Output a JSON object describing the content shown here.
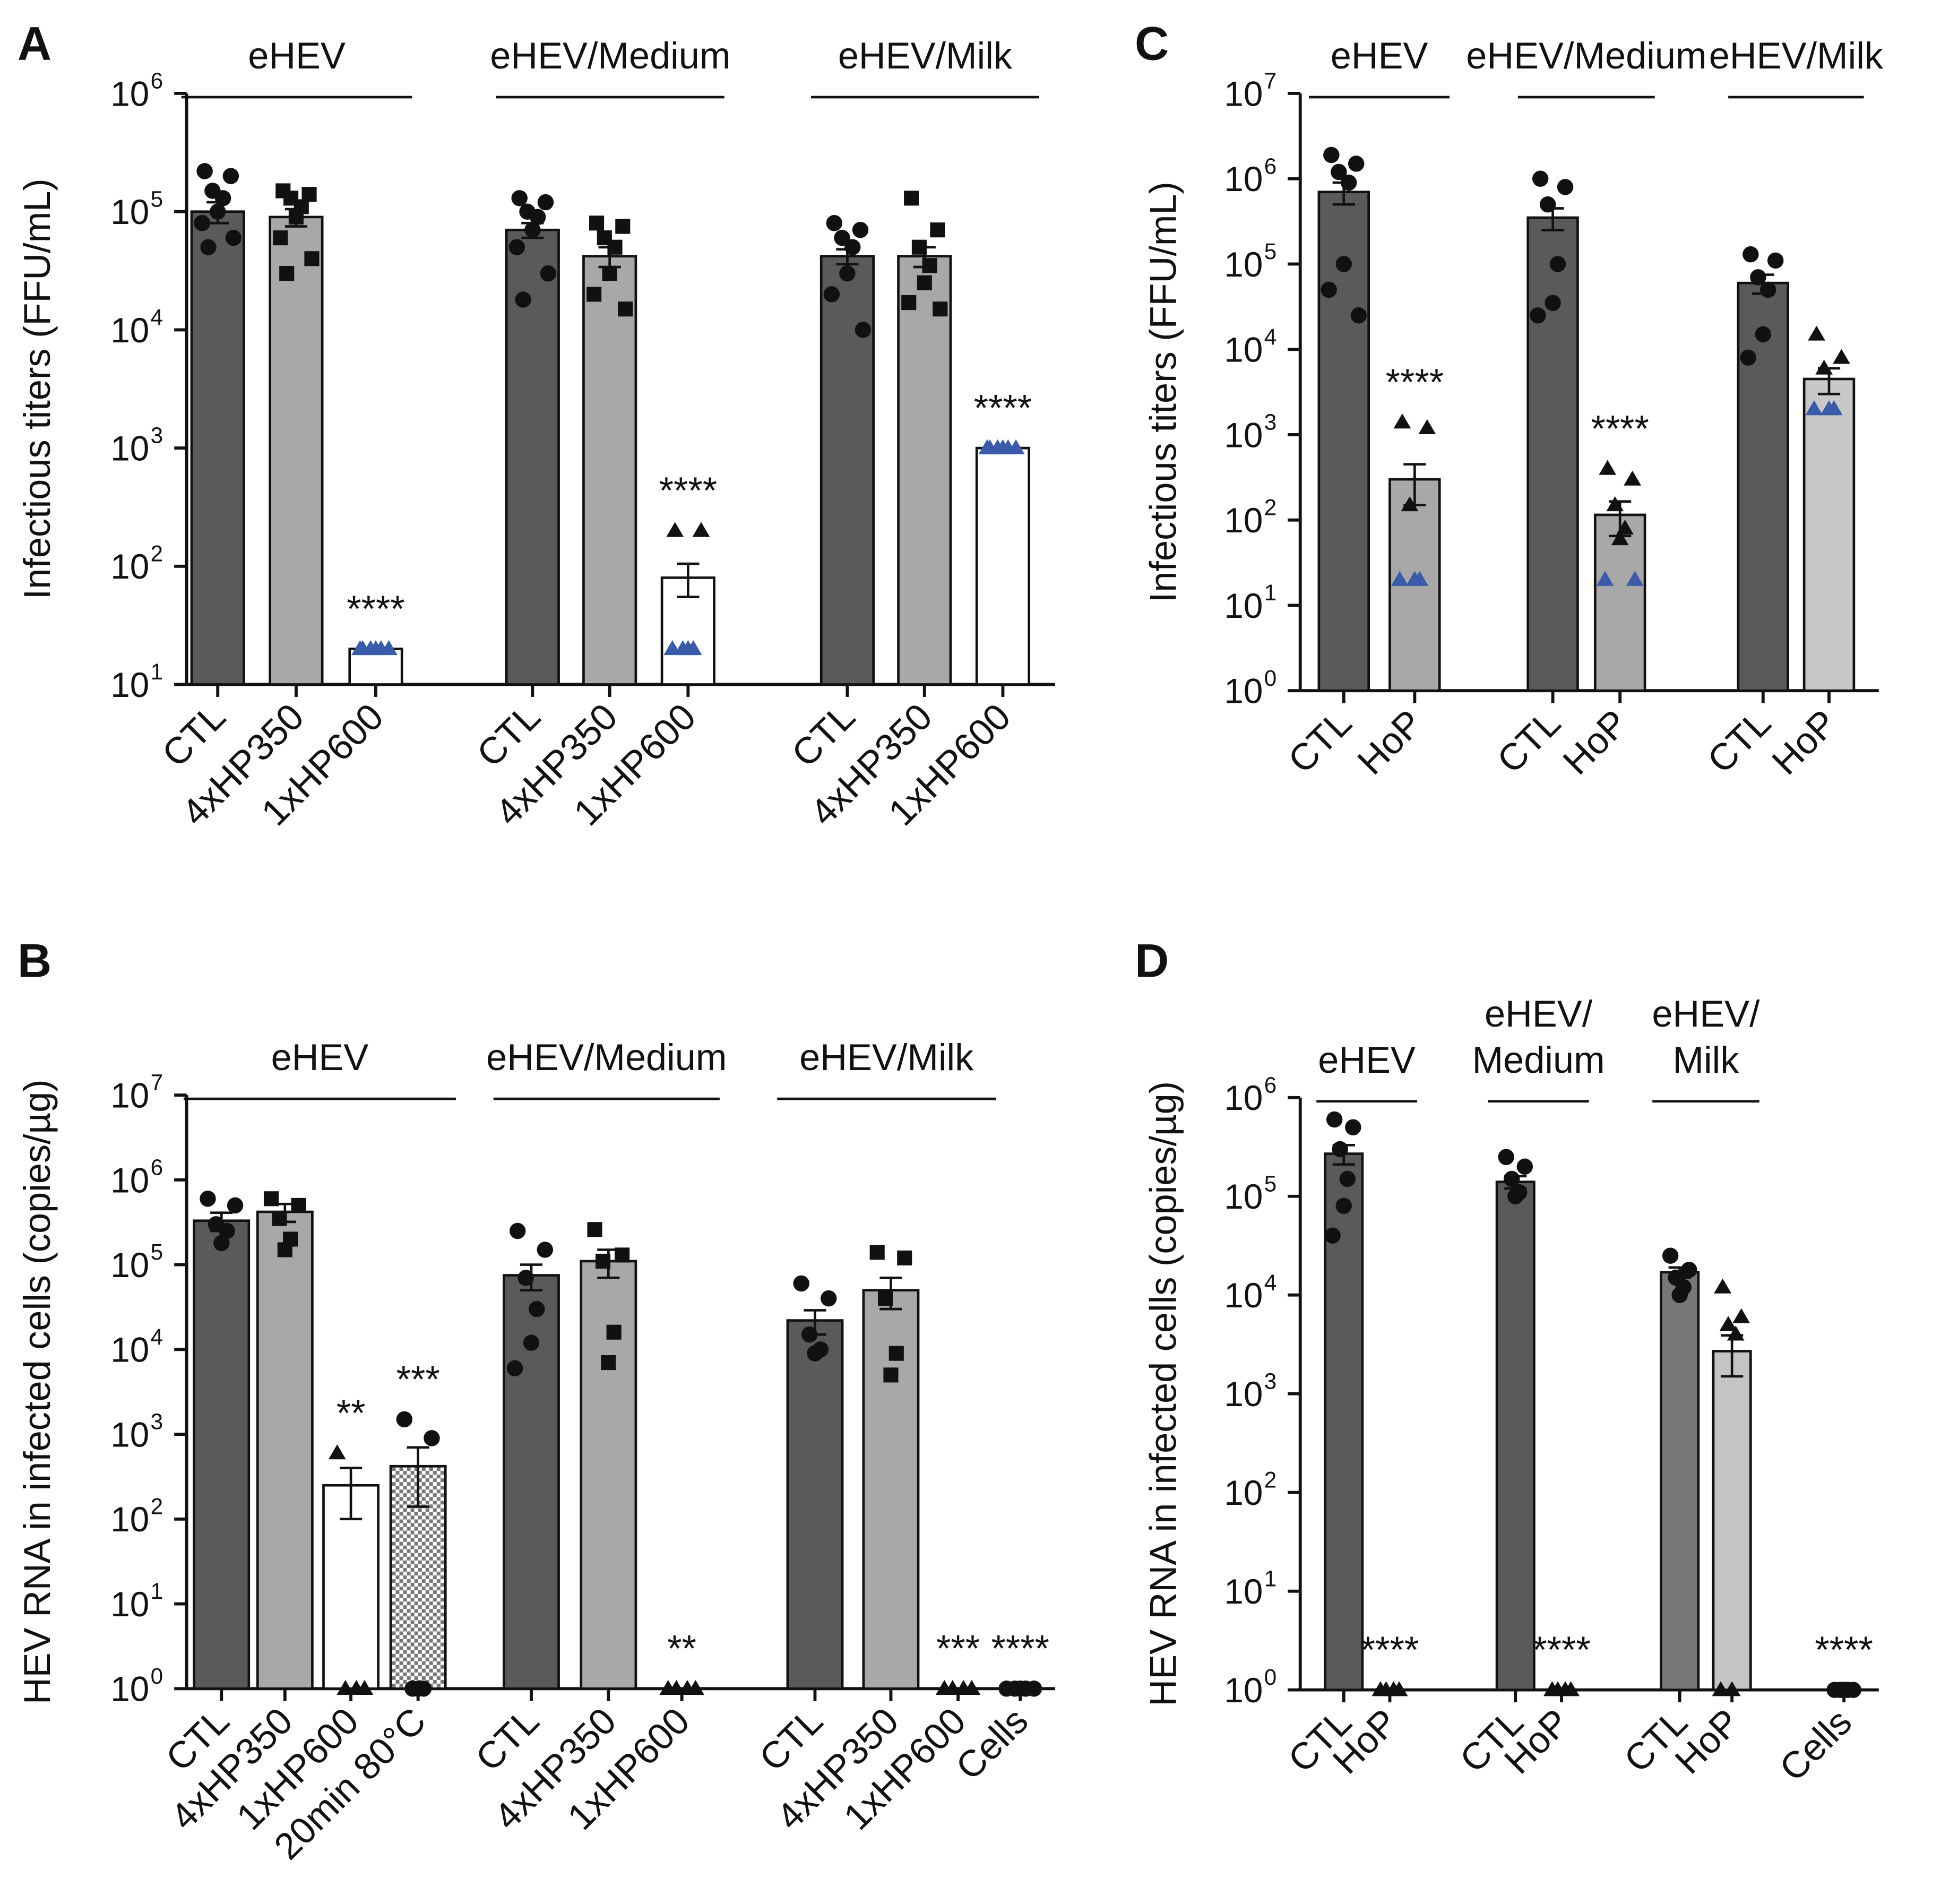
{
  "chart_data": [
    {
      "type": "bar",
      "panel": "A",
      "log": true,
      "ylabel": "Infectious titers (FFU/mL)",
      "lod_color": "#3a5ba9",
      "ylim": [
        10,
        1000000
      ],
      "yticks": [
        {
          "value": 10,
          "label": "10",
          "sup": "1"
        },
        {
          "value": 100,
          "label": "10",
          "sup": "2"
        },
        {
          "value": 1000,
          "label": "10",
          "sup": "3"
        },
        {
          "value": 10000,
          "label": "10",
          "sup": "4"
        },
        {
          "value": 100000,
          "label": "10",
          "sup": "5"
        },
        {
          "value": 1000000,
          "label": "10",
          "sup": "6"
        }
      ],
      "groups": [
        {
          "label": "eHEV",
          "lod": 20,
          "categories": [
            "CTL",
            "4xHP350",
            "1xHP600"
          ],
          "values": [
            100000,
            90000,
            20
          ],
          "errors": [
            20000,
            15000,
            0
          ],
          "colors": [
            "#5a5a5a",
            "#a8a8a8",
            "#ffffff"
          ],
          "markers": [
            "circle",
            "square",
            "triangle"
          ],
          "annotations": [
            null,
            null,
            "****"
          ],
          "points": [
            [
              220000,
              200000,
              150000,
              130000,
              100000,
              80000,
              60000,
              50000
            ],
            [
              150000,
              140000,
              130000,
              110000,
              90000,
              60000,
              40000,
              30000
            ],
            [
              20,
              20,
              20,
              20,
              20,
              20
            ]
          ]
        },
        {
          "label": "eHEV/Medium",
          "lod": 20,
          "categories": [
            "CTL",
            "4xHP350",
            "1xHP600"
          ],
          "values": [
            70000,
            42000,
            80
          ],
          "errors": [
            10000,
            8000,
            25
          ],
          "colors": [
            "#5a5a5a",
            "#a8a8a8",
            "#ffffff"
          ],
          "markers": [
            "circle",
            "square",
            "triangle"
          ],
          "annotations": [
            null,
            null,
            "****"
          ],
          "points": [
            [
              130000,
              120000,
              100000,
              90000,
              70000,
              50000,
              30000,
              18000
            ],
            [
              80000,
              75000,
              60000,
              50000,
              30000,
              20000,
              15000
            ],
            [
              200,
              200,
              20,
              20,
              20,
              20
            ]
          ]
        },
        {
          "label": "eHEV/Milk",
          "lod": 1000,
          "categories": [
            "CTL",
            "4xHP350",
            "1xHP600"
          ],
          "values": [
            42000,
            42000,
            1000
          ],
          "errors": [
            6000,
            8000,
            0
          ],
          "colors": [
            "#5a5a5a",
            "#a8a8a8",
            "#ffffff"
          ],
          "markers": [
            "circle",
            "square",
            "triangle"
          ],
          "annotations": [
            null,
            null,
            "****"
          ],
          "points": [
            [
              80000,
              70000,
              60000,
              50000,
              30000,
              20000,
              10000
            ],
            [
              130000,
              70000,
              50000,
              35000,
              25000,
              17000,
              15000
            ],
            [
              1000,
              1000,
              1000,
              1000,
              1000,
              1000
            ]
          ]
        }
      ]
    },
    {
      "type": "bar",
      "panel": "B",
      "log": true,
      "ylabel": "HEV RNA in infected cells (copies/µg)",
      "ylim": [
        1,
        10000000
      ],
      "yticks": [
        {
          "value": 1,
          "label": "10",
          "sup": "0"
        },
        {
          "value": 10,
          "label": "10",
          "sup": "1"
        },
        {
          "value": 100,
          "label": "10",
          "sup": "2"
        },
        {
          "value": 1000,
          "label": "10",
          "sup": "3"
        },
        {
          "value": 10000,
          "label": "10",
          "sup": "4"
        },
        {
          "value": 100000,
          "label": "10",
          "sup": "5"
        },
        {
          "value": 1000000,
          "label": "10",
          "sup": "6"
        },
        {
          "value": 10000000,
          "label": "10",
          "sup": "7"
        }
      ],
      "groups": [
        {
          "label": "eHEV",
          "categories": [
            "CTL",
            "4xHP350",
            "1xHP600",
            "20min 80°C"
          ],
          "values": [
            330000,
            420000,
            250,
            420
          ],
          "errors": [
            80000,
            100000,
            150,
            280
          ],
          "colors": [
            "#5a5a5a",
            "#a8a8a8",
            "#ffffff",
            "checker"
          ],
          "markers": [
            "circle",
            "square",
            "triangle",
            "circle"
          ],
          "annotations": [
            null,
            null,
            "**",
            "***"
          ],
          "points": [
            [
              600000,
              500000,
              300000,
              250000,
              180000
            ],
            [
              600000,
              500000,
              350000,
              200000,
              150000
            ],
            [
              600,
              1,
              1,
              1
            ],
            [
              1500,
              900,
              1,
              1,
              1
            ]
          ]
        },
        {
          "label": "eHEV/Medium",
          "categories": [
            "CTL",
            "4xHP350",
            "1xHP600"
          ],
          "values": [
            75000,
            110000,
            1
          ],
          "errors": [
            25000,
            40000,
            0
          ],
          "colors": [
            "#5a5a5a",
            "#a8a8a8",
            "#ffffff"
          ],
          "markers": [
            "circle",
            "square",
            "triangle"
          ],
          "annotations": [
            null,
            null,
            "**"
          ],
          "points": [
            [
              250000,
              150000,
              70000,
              30000,
              12000,
              6000
            ],
            [
              260000,
              130000,
              110000,
              16000,
              7000
            ],
            [
              1,
              1,
              1,
              1
            ]
          ]
        },
        {
          "label": "eHEV/Milk",
          "categories": [
            "CTL",
            "4xHP350",
            "1xHP600"
          ],
          "values": [
            22000,
            50000,
            1
          ],
          "errors": [
            7000,
            20000,
            0
          ],
          "colors": [
            "#5a5a5a",
            "#a8a8a8",
            "#ffffff"
          ],
          "markers": [
            "circle",
            "square",
            "triangle"
          ],
          "annotations": [
            null,
            null,
            "***"
          ],
          "points": [
            [
              60000,
              40000,
              15000,
              10000,
              9000
            ],
            [
              140000,
              120000,
              40000,
              9000,
              5000
            ],
            [
              1,
              1,
              1,
              1
            ]
          ]
        },
        {
          "label": null,
          "categories": [
            "Cells"
          ],
          "values": [
            1
          ],
          "errors": [
            0
          ],
          "colors": [
            "#ffffff"
          ],
          "markers": [
            "circle"
          ],
          "annotations": [
            "****"
          ],
          "points": [
            [
              1,
              1,
              1,
              1,
              1
            ]
          ]
        }
      ]
    },
    {
      "type": "bar",
      "panel": "C",
      "log": true,
      "ylabel": "Infectious titers (FFU/mL)",
      "lod_color": "#3a5ba9",
      "ylim": [
        1,
        10000000
      ],
      "yticks": [
        {
          "value": 1,
          "label": "10",
          "sup": "0"
        },
        {
          "value": 10,
          "label": "10",
          "sup": "1"
        },
        {
          "value": 100,
          "label": "10",
          "sup": "2"
        },
        {
          "value": 1000,
          "label": "10",
          "sup": "3"
        },
        {
          "value": 10000,
          "label": "10",
          "sup": "4"
        },
        {
          "value": 100000,
          "label": "10",
          "sup": "5"
        },
        {
          "value": 1000000,
          "label": "10",
          "sup": "6"
        },
        {
          "value": 10000000,
          "label": "10",
          "sup": "7"
        }
      ],
      "groups": [
        {
          "label": "eHEV",
          "lod": 20,
          "categories": [
            "CTL",
            "HoP"
          ],
          "values": [
            700000,
            300
          ],
          "errors": [
            200000,
            150
          ],
          "colors": [
            "#5a5a5a",
            "#a8a8a8"
          ],
          "markers": [
            "circle",
            "triangle"
          ],
          "annotations": [
            null,
            "****"
          ],
          "points": [
            [
              1900000,
              1500000,
              1200000,
              900000,
              100000,
              50000,
              25000
            ],
            [
              1400,
              1200,
              150,
              20,
              20,
              20
            ]
          ]
        },
        {
          "label": "eHEV/Medium",
          "lod": 20,
          "categories": [
            "CTL",
            "HoP"
          ],
          "values": [
            350000,
            115
          ],
          "errors": [
            100000,
            50
          ],
          "colors": [
            "#5a5a5a",
            "#a8a8a8"
          ],
          "markers": [
            "circle",
            "triangle"
          ],
          "annotations": [
            null,
            "****"
          ],
          "points": [
            [
              1000000,
              800000,
              500000,
              100000,
              35000,
              25000
            ],
            [
              400,
              300,
              150,
              80,
              60,
              20,
              20
            ]
          ]
        },
        {
          "label": "eHEV/Milk",
          "lod": 2000,
          "categories": [
            "CTL",
            "HoP"
          ],
          "values": [
            60000,
            4500
          ],
          "errors": [
            15000,
            1500
          ],
          "colors": [
            "#5a5a5a",
            "#c8c8c8"
          ],
          "markers": [
            "circle",
            "triangle"
          ],
          "annotations": [
            null,
            null
          ],
          "points": [
            [
              130000,
              110000,
              70000,
              50000,
              15000,
              8000
            ],
            [
              15000,
              8000,
              6000,
              2000,
              2000,
              2000
            ]
          ]
        }
      ]
    },
    {
      "type": "bar",
      "panel": "D",
      "log": true,
      "ylabel": "HEV RNA in infected cells (copies/µg)",
      "ylim": [
        1,
        1000000
      ],
      "yticks": [
        {
          "value": 1,
          "label": "10",
          "sup": "0"
        },
        {
          "value": 10,
          "label": "10",
          "sup": "1"
        },
        {
          "value": 100,
          "label": "10",
          "sup": "2"
        },
        {
          "value": 1000,
          "label": "10",
          "sup": "3"
        },
        {
          "value": 10000,
          "label": "10",
          "sup": "4"
        },
        {
          "value": 100000,
          "label": "10",
          "sup": "5"
        },
        {
          "value": 1000000,
          "label": "10",
          "sup": "6"
        }
      ],
      "groups": [
        {
          "label": [
            "eHEV"
          ],
          "categories": [
            "CTL",
            "HoP"
          ],
          "values": [
            270000,
            1
          ],
          "errors": [
            60000,
            0
          ],
          "colors": [
            "#5a5a5a",
            "#a8a8a8"
          ],
          "markers": [
            "circle",
            "triangle"
          ],
          "annotations": [
            null,
            "****"
          ],
          "points": [
            [
              600000,
              500000,
              300000,
              150000,
              80000,
              40000
            ],
            [
              1,
              1,
              1,
              1
            ]
          ]
        },
        {
          "label": [
            "eHEV/",
            "Medium"
          ],
          "categories": [
            "CTL",
            "HoP"
          ],
          "values": [
            140000,
            1
          ],
          "errors": [
            20000,
            0
          ],
          "colors": [
            "#5a5a5a",
            "#a8a8a8"
          ],
          "markers": [
            "circle",
            "triangle"
          ],
          "annotations": [
            null,
            "****"
          ],
          "points": [
            [
              250000,
              200000,
              150000,
              110000,
              100000
            ],
            [
              1,
              1,
              1,
              1
            ]
          ]
        },
        {
          "label": [
            "eHEV/",
            "Milk"
          ],
          "categories": [
            "CTL",
            "HoP"
          ],
          "values": [
            17000,
            2700
          ],
          "errors": [
            2000,
            1200
          ],
          "colors": [
            "#777777",
            "#c4c4c4"
          ],
          "markers": [
            "circle",
            "triangle"
          ],
          "annotations": [
            null,
            null
          ],
          "points": [
            [
              25000,
              18000,
              15000,
              12000,
              10000
            ],
            [
              12000,
              6000,
              5000,
              4000,
              1,
              1
            ]
          ]
        },
        {
          "label": null,
          "categories": [
            "Cells"
          ],
          "values": [
            1
          ],
          "errors": [
            0
          ],
          "colors": [
            "#ffffff"
          ],
          "markers": [
            "circle"
          ],
          "annotations": [
            "****"
          ],
          "points": [
            [
              1,
              1,
              1,
              1,
              1
            ]
          ]
        }
      ]
    }
  ]
}
